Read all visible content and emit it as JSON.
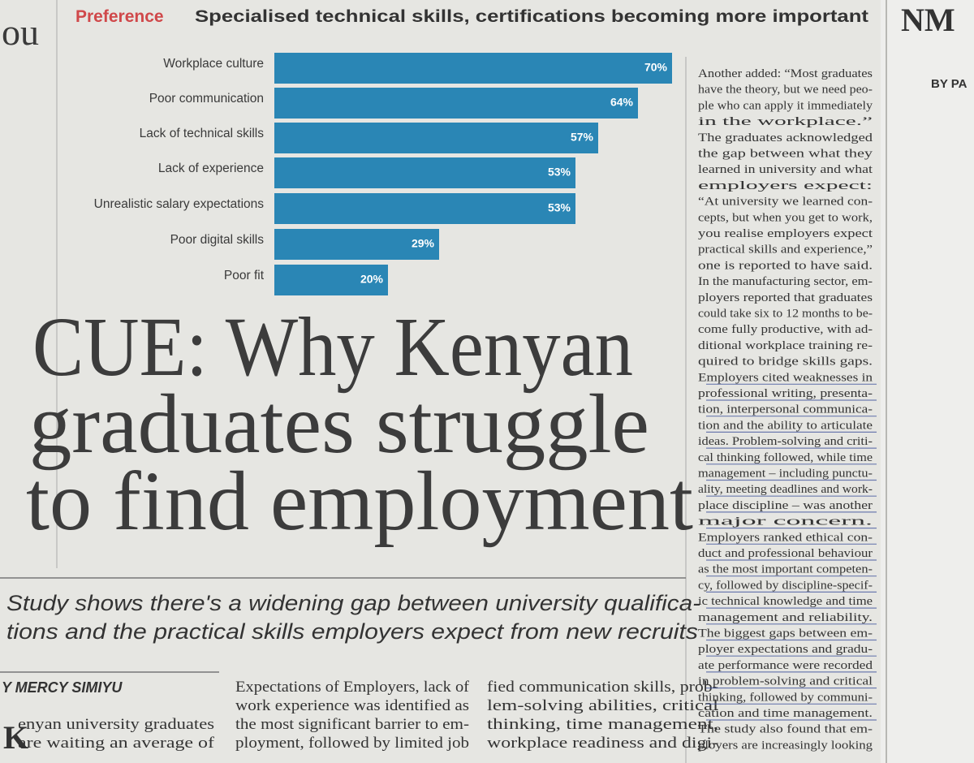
{
  "header": {
    "kicker": "Preference",
    "title": "Specialised technical skills, certifications becoming more important"
  },
  "chart_data": {
    "type": "bar",
    "orientation": "horizontal",
    "categories": [
      "Workplace culture",
      "Poor communication",
      "Lack of technical skills",
      "Lack of experience",
      "Unrealistic salary expectations",
      "Poor digital skills",
      "Poor fit"
    ],
    "values": [
      70,
      64,
      57,
      53,
      53,
      29,
      20
    ],
    "value_labels": [
      "70%",
      "64%",
      "57%",
      "53%",
      "53%",
      "29%",
      "20%"
    ],
    "color": "#2a86b5"
  },
  "headline": [
    "CUE: Why Kenyan",
    "graduates struggle",
    "to find employment"
  ],
  "standfirst": [
    "Study shows there's a widening gap between university qualifica-",
    "tions and the practical skills employers expect from new recruits"
  ],
  "byline": "Y MERCY SIMIYU",
  "columns": [
    [
      "enyan university graduates",
      "are waiting an average of"
    ],
    [
      "Expectations of Employers, lack of",
      "work experience was identified as",
      "the most significant barrier to em-",
      "ployment, followed by limited job"
    ],
    [
      "fied communication skills, prob-",
      "lem-solving abilities, critical",
      "thinking, time management,",
      "workplace readiness and digi-"
    ]
  ],
  "sidebar": [
    "Another added: “Most graduates",
    "have the theory, but we need peo-",
    "ple who can apply it immediately",
    "in the workplace.”",
    "The graduates acknowledged",
    "the gap between what they",
    "learned in university and what",
    "employers expect:",
    "“At university we learned con-",
    "cepts, but when you get to work,",
    "you realise employers expect",
    "practical skills and experience,”",
    "one is reported to have said.",
    "In the manufacturing sector, em-",
    "ployers reported that graduates",
    "could take six to 12 months to be-",
    "come fully productive, with ad-",
    "ditional workplace training re-",
    "quired to bridge skills gaps.",
    "Employers cited weaknesses in",
    "professional writing, presenta-",
    "tion, interpersonal communica-",
    "tion and the ability to articulate",
    "ideas. Problem-solving and criti-",
    "cal thinking followed, while time",
    "management – including punctu-",
    "ality, meeting deadlines and work-",
    "place discipline – was another",
    "major concern.",
    "Employers ranked ethical con-",
    "duct and professional behaviour",
    "as the most important competen-",
    "cy, followed by discipline-specif-",
    "ic technical knowledge and time",
    "management and reliability.",
    "The biggest gaps between em-",
    "ployer expectations and gradu-",
    "ate performance were recorded",
    "in problem-solving and critical",
    "thinking, followed by communi-",
    "cation and time management.",
    "The study also found that em-",
    "ployers are increasingly looking"
  ],
  "edge": {
    "left": "ou",
    "right_title": "NM",
    "right_byline": "BY PA"
  }
}
